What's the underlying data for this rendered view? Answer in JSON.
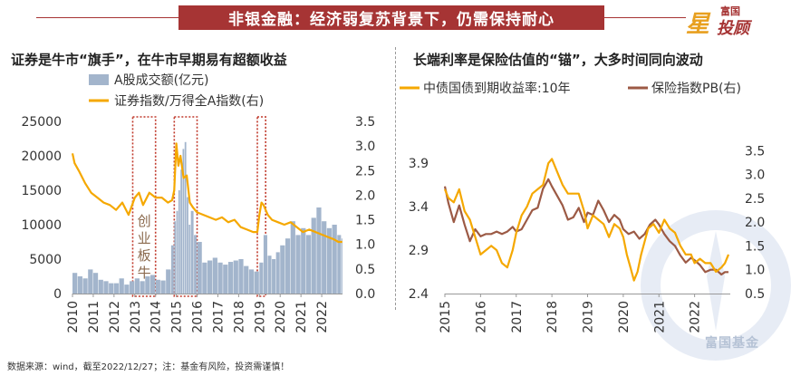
{
  "banner": {
    "title": "非银金融：经济弱复苏背景下，仍需保持耐心"
  },
  "logo": {
    "top": "富国",
    "main": "投顾",
    "star": "星"
  },
  "footer": "数据来源：wind，截至2022/12/27；注：基金有风险，投资需谨慎！",
  "watermark": "富国基金",
  "colors": {
    "brand_red": "#a63434",
    "orange": "#f5a800",
    "bars": "#a3b5cc",
    "brown": "#9c5a45",
    "box": "#c0392b"
  },
  "chart_data": [
    {
      "type": "bar+line",
      "title": "证券是牛市“旗手”，在牛市早期易有超额收益",
      "legend": [
        "A股成交额(亿元)",
        "证券指数/万得全A指数(右)"
      ],
      "x_ticks": [
        "2010",
        "2011",
        "2012",
        "2013",
        "2014",
        "2015",
        "2016",
        "2017",
        "2018",
        "2019",
        "2020",
        "2021",
        "2022"
      ],
      "xlim": [
        2010,
        2023
      ],
      "y_left": {
        "ticks": [
          "0",
          "5000",
          "10000",
          "15000",
          "20000",
          "25000"
        ],
        "lim": [
          0,
          25000
        ]
      },
      "y_right": {
        "ticks": [
          "0.0",
          "0.5",
          "1.0",
          "1.5",
          "2.0",
          "2.5",
          "3.0",
          "3.5"
        ],
        "lim": [
          0,
          3.5
        ]
      },
      "annotation": "创业板牛",
      "highlight_ranges": [
        [
          2012.9,
          2014.0
        ],
        [
          2014.9,
          2016.0
        ],
        [
          2018.9,
          2019.3
        ]
      ],
      "series": [
        {
          "name": "A股成交额(亿元)",
          "type": "bar",
          "x": [
            2010.0,
            2010.25,
            2010.5,
            2010.75,
            2011.0,
            2011.25,
            2011.5,
            2011.75,
            2012.0,
            2012.25,
            2012.5,
            2012.75,
            2013.0,
            2013.25,
            2013.5,
            2013.75,
            2014.0,
            2014.25,
            2014.5,
            2014.75,
            2014.9,
            2015.0,
            2015.1,
            2015.2,
            2015.3,
            2015.4,
            2015.5,
            2015.6,
            2015.7,
            2015.85,
            2016.0,
            2016.25,
            2016.5,
            2016.75,
            2017.0,
            2017.25,
            2017.5,
            2017.75,
            2018.0,
            2018.25,
            2018.5,
            2018.75,
            2019.0,
            2019.2,
            2019.4,
            2019.6,
            2019.8,
            2020.0,
            2020.25,
            2020.5,
            2020.75,
            2021.0,
            2021.25,
            2021.5,
            2021.75,
            2022.0,
            2022.25,
            2022.5,
            2022.75,
            2022.95
          ],
          "values": [
            3000,
            2500,
            2200,
            3500,
            3000,
            2000,
            1800,
            1500,
            1500,
            2200,
            1300,
            1800,
            2200,
            1800,
            2500,
            2700,
            2000,
            1900,
            3500,
            7000,
            10500,
            12000,
            15000,
            18000,
            21000,
            22000,
            14000,
            10000,
            12000,
            8500,
            7500,
            4500,
            4800,
            5200,
            4500,
            4200,
            4600,
            4800,
            5000,
            4000,
            3500,
            3200,
            4500,
            8500,
            5500,
            5000,
            6000,
            7000,
            8000,
            10500,
            8500,
            9500,
            8500,
            11000,
            12500,
            10500,
            9500,
            10000,
            8500,
            8000
          ]
        },
        {
          "name": "证券指数/万得全A指数(右)",
          "type": "line",
          "x": [
            2010.0,
            2010.1,
            2010.3,
            2010.6,
            2010.9,
            2011.2,
            2011.5,
            2011.8,
            2012.1,
            2012.4,
            2012.7,
            2013.0,
            2013.2,
            2013.4,
            2013.7,
            2014.0,
            2014.3,
            2014.6,
            2014.8,
            2014.9,
            2015.0,
            2015.1,
            2015.2,
            2015.35,
            2015.5,
            2015.65,
            2015.8,
            2016.0,
            2016.3,
            2016.6,
            2016.9,
            2017.2,
            2017.5,
            2017.8,
            2018.1,
            2018.4,
            2018.7,
            2018.9,
            2019.0,
            2019.1,
            2019.2,
            2019.4,
            2019.6,
            2019.9,
            2020.2,
            2020.5,
            2020.8,
            2021.1,
            2021.4,
            2021.7,
            2022.0,
            2022.3,
            2022.6,
            2022.8,
            2022.99
          ],
          "values": [
            2.85,
            2.65,
            2.5,
            2.25,
            2.05,
            1.95,
            1.85,
            1.8,
            1.7,
            1.85,
            1.6,
            1.95,
            2.05,
            1.8,
            2.05,
            1.95,
            1.95,
            1.85,
            1.9,
            2.1,
            3.05,
            2.6,
            2.8,
            2.35,
            2.4,
            1.85,
            1.75,
            1.65,
            1.6,
            1.55,
            1.5,
            1.55,
            1.45,
            1.5,
            1.35,
            1.3,
            1.25,
            1.25,
            1.6,
            1.85,
            1.8,
            1.6,
            1.5,
            1.45,
            1.4,
            1.45,
            1.35,
            1.25,
            1.3,
            1.25,
            1.2,
            1.15,
            1.1,
            1.05,
            1.05
          ]
        }
      ]
    },
    {
      "type": "line",
      "title": "长端利率是保险估值的“锚”，大多时间同向波动",
      "legend": [
        "中债国债到期收益率:10年",
        "保险指数PB(右)"
      ],
      "x_ticks": [
        "2015",
        "2016",
        "2017",
        "2018",
        "2019",
        "2020",
        "2021",
        "2022"
      ],
      "xlim": [
        2015,
        2023
      ],
      "y_left": {
        "ticks": [
          "2.4",
          "2.9",
          "3.4",
          "3.9"
        ],
        "lim": [
          2.4,
          4.1
        ]
      },
      "y_right": {
        "ticks": [
          "0.5",
          "1.0",
          "1.5",
          "2.0",
          "2.5",
          "3.0",
          "3.5"
        ],
        "lim": [
          0.5,
          3.6
        ]
      },
      "series": [
        {
          "name": "中债国债到期收益率:10年",
          "axis": "left",
          "x": [
            2015.0,
            2015.1,
            2015.25,
            2015.4,
            2015.55,
            2015.7,
            2015.85,
            2016.0,
            2016.15,
            2016.3,
            2016.45,
            2016.6,
            2016.75,
            2016.9,
            2017.0,
            2017.15,
            2017.3,
            2017.45,
            2017.6,
            2017.75,
            2017.9,
            2018.0,
            2018.15,
            2018.3,
            2018.45,
            2018.6,
            2018.75,
            2018.9,
            2019.0,
            2019.15,
            2019.3,
            2019.45,
            2019.6,
            2019.75,
            2019.9,
            2020.0,
            2020.1,
            2020.2,
            2020.3,
            2020.4,
            2020.5,
            2020.6,
            2020.7,
            2020.85,
            2021.0,
            2021.15,
            2021.3,
            2021.45,
            2021.6,
            2021.75,
            2021.9,
            2022.0,
            2022.15,
            2022.3,
            2022.45,
            2022.6,
            2022.75,
            2022.85,
            2022.95
          ],
          "values": [
            3.6,
            3.5,
            3.45,
            3.6,
            3.35,
            3.25,
            3.05,
            2.85,
            2.9,
            2.95,
            2.9,
            2.75,
            2.7,
            2.9,
            3.1,
            3.3,
            3.4,
            3.55,
            3.6,
            3.65,
            3.9,
            3.95,
            3.8,
            3.65,
            3.55,
            3.55,
            3.55,
            3.35,
            3.15,
            3.3,
            3.25,
            3.2,
            3.05,
            3.2,
            3.15,
            3.05,
            2.85,
            2.7,
            2.55,
            2.65,
            2.85,
            3.0,
            3.15,
            3.2,
            3.1,
            3.25,
            3.15,
            3.1,
            2.95,
            2.85,
            2.85,
            2.75,
            2.8,
            2.75,
            2.75,
            2.65,
            2.7,
            2.75,
            2.85
          ]
        },
        {
          "name": "保险指数PB(右)",
          "axis": "right",
          "x": [
            2015.0,
            2015.1,
            2015.25,
            2015.4,
            2015.55,
            2015.7,
            2015.85,
            2016.0,
            2016.15,
            2016.3,
            2016.45,
            2016.6,
            2016.75,
            2016.9,
            2017.0,
            2017.15,
            2017.3,
            2017.45,
            2017.6,
            2017.75,
            2017.9,
            2018.0,
            2018.15,
            2018.3,
            2018.45,
            2018.6,
            2018.75,
            2018.9,
            2019.0,
            2019.15,
            2019.3,
            2019.45,
            2019.6,
            2019.75,
            2019.9,
            2020.0,
            2020.15,
            2020.3,
            2020.45,
            2020.6,
            2020.75,
            2020.9,
            2021.0,
            2021.15,
            2021.3,
            2021.45,
            2021.6,
            2021.75,
            2021.9,
            2022.0,
            2022.15,
            2022.3,
            2022.45,
            2022.6,
            2022.75,
            2022.85,
            2022.95
          ],
          "values": [
            2.75,
            2.4,
            2.0,
            2.35,
            1.95,
            1.6,
            1.85,
            1.7,
            1.75,
            1.75,
            1.8,
            1.75,
            1.8,
            1.9,
            1.8,
            1.85,
            2.05,
            2.25,
            2.3,
            2.7,
            2.9,
            2.75,
            2.55,
            2.35,
            2.05,
            2.1,
            2.3,
            2.0,
            2.2,
            2.15,
            2.45,
            2.25,
            2.0,
            2.15,
            2.05,
            1.85,
            1.75,
            1.8,
            1.65,
            1.75,
            1.95,
            2.05,
            1.95,
            1.75,
            1.6,
            1.5,
            1.3,
            1.15,
            1.25,
            1.2,
            1.1,
            0.95,
            1.0,
            1.0,
            0.9,
            0.95,
            0.95
          ]
        }
      ]
    }
  ]
}
